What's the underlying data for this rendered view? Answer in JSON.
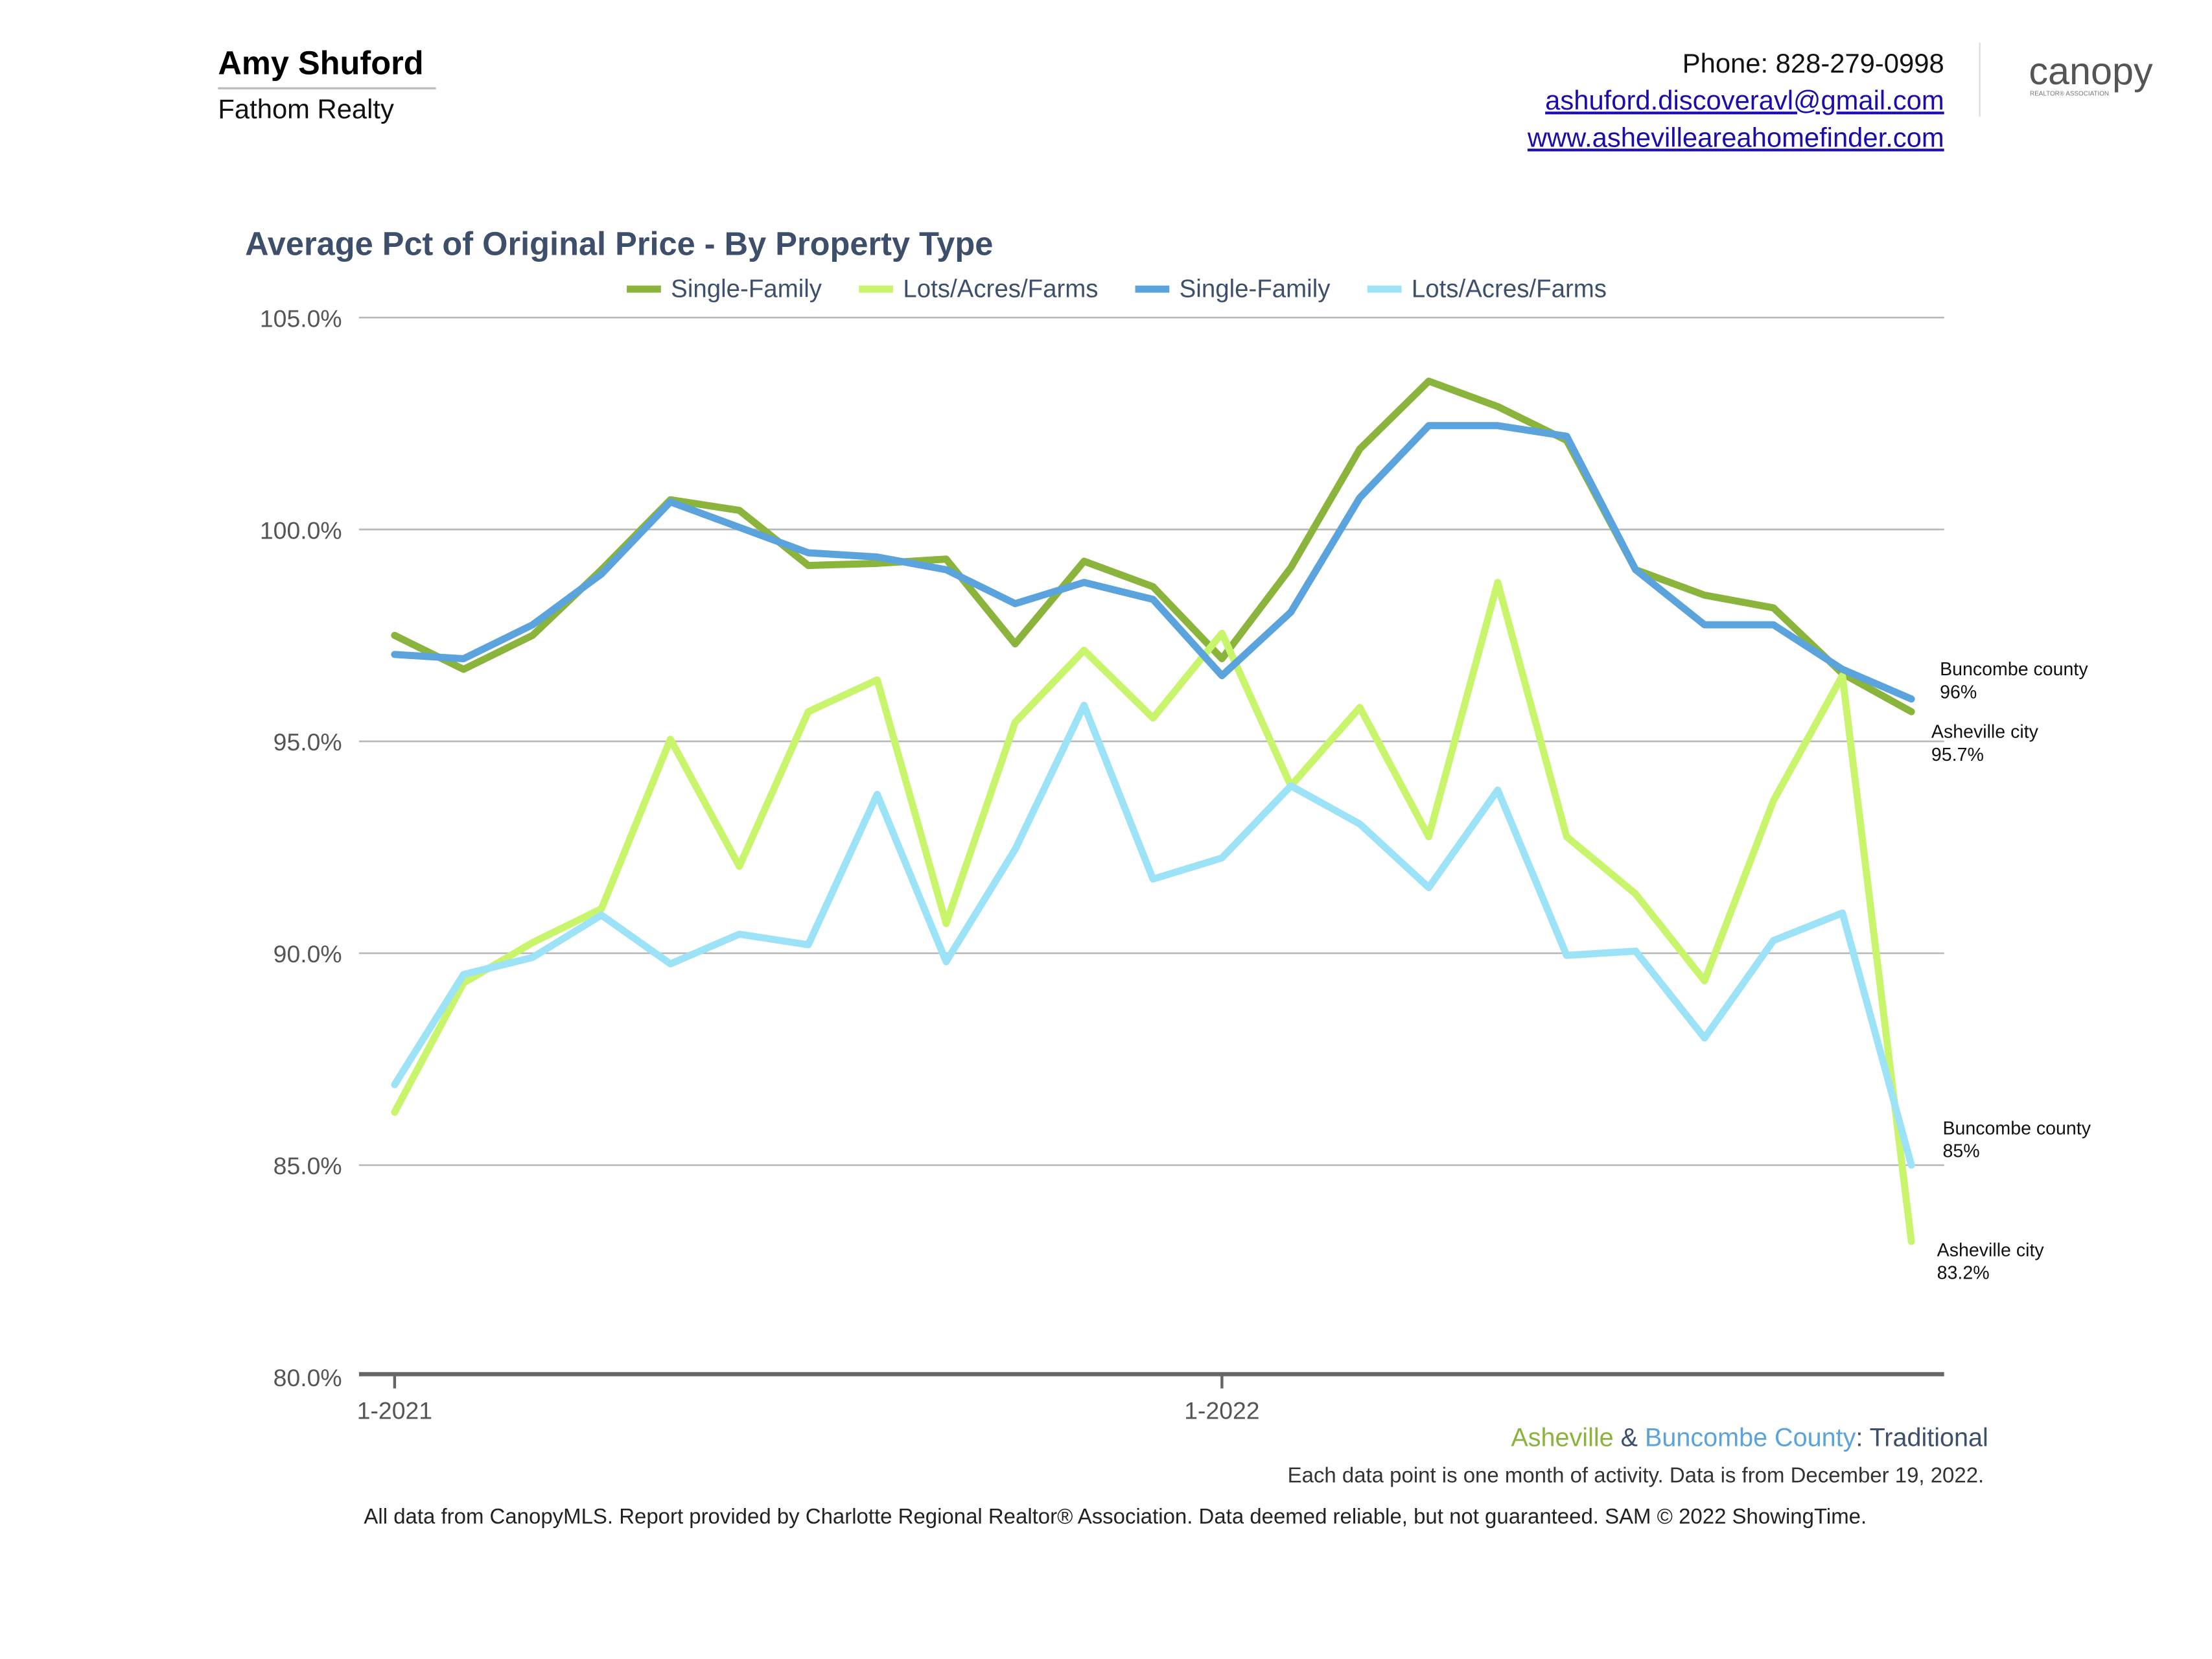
{
  "header": {
    "agent_name": "Amy Shuford",
    "company": "Fathom Realty",
    "phone": "Phone: 828-279-0998",
    "email": "ashuford.discoveravl@gmail.com",
    "website": "www.ashevilleareahomefinder.com",
    "logo": "canopy",
    "logo_subtitle": "REALTOR® ASSOCIATION"
  },
  "chart_data": {
    "type": "line",
    "title": "Average Pct of Original Price - By Property Type",
    "categories": [
      "1-2021",
      null,
      null,
      null,
      null,
      null,
      null,
      null,
      null,
      null,
      null,
      null,
      "1-2022",
      null,
      null,
      null,
      null,
      null,
      null,
      null,
      null,
      null,
      null
    ],
    "ylim": [
      80,
      105
    ],
    "yticks": [
      {
        "value": 80,
        "label": "80.0%"
      },
      {
        "value": 85,
        "label": "85.0%"
      },
      {
        "value": 90,
        "label": "90.0%"
      },
      {
        "value": 95,
        "label": "95.0%"
      },
      {
        "value": 100,
        "label": "100.0%"
      },
      {
        "value": 105,
        "label": "105.0%"
      }
    ],
    "grid": true,
    "series": [
      {
        "name": "Single-Family",
        "color": "#8ab43c",
        "values": [
          97.5,
          96.7,
          97.5,
          99.05,
          100.7,
          100.45,
          99.15,
          99.2,
          99.3,
          97.3,
          99.25,
          98.65,
          96.95,
          99.1,
          101.9,
          103.5,
          102.9,
          102.1,
          99.05,
          98.45,
          98.15,
          96.6,
          95.7
        ],
        "end_label": {
          "name": "Asheville city",
          "value_label": "95.7%"
        }
      },
      {
        "name": "Lots/Acres/Farms",
        "color": "#c8f56b",
        "values": [
          86.25,
          89.3,
          90.25,
          91.05,
          95.05,
          92.05,
          95.7,
          96.45,
          90.7,
          95.45,
          97.15,
          95.55,
          97.55,
          93.95,
          95.8,
          92.75,
          98.75,
          92.75,
          91.4,
          89.35,
          93.6,
          96.55,
          83.2
        ],
        "end_label": {
          "name": "Asheville city",
          "value_label": "83.2%"
        }
      },
      {
        "name": "Single-Family",
        "color": "#5ba3dc",
        "values": [
          97.05,
          96.95,
          97.75,
          98.95,
          100.65,
          100.05,
          99.45,
          99.35,
          99.05,
          98.25,
          98.75,
          98.35,
          96.55,
          98.05,
          100.75,
          102.45,
          102.45,
          102.2,
          99.05,
          97.75,
          97.75,
          96.7,
          96
        ],
        "end_label": {
          "name": "Buncombe county",
          "value_label": "96%"
        }
      },
      {
        "name": "Lots/Acres/Farms",
        "color": "#9de3f7",
        "values": [
          86.9,
          89.5,
          89.9,
          90.9,
          89.75,
          90.45,
          90.2,
          93.75,
          89.8,
          92.45,
          95.85,
          91.75,
          92.25,
          93.95,
          93.05,
          91.55,
          93.85,
          89.95,
          90.05,
          88.0,
          90.3,
          90.95,
          85
        ],
        "end_label": {
          "name": "Buncombe county",
          "value_label": "85%"
        }
      }
    ],
    "caption": {
      "part1": "Asheville",
      "part2": " & ",
      "part3": "Buncombe County",
      "part4": ": Traditional"
    },
    "note": "Each data point is one month of activity. Data is from December 19, 2022."
  },
  "footer": "All data from CanopyMLS. Report provided by Charlotte Regional Realtor® Association. Data deemed reliable, but not guaranteed. SAM © 2022 ShowingTime."
}
